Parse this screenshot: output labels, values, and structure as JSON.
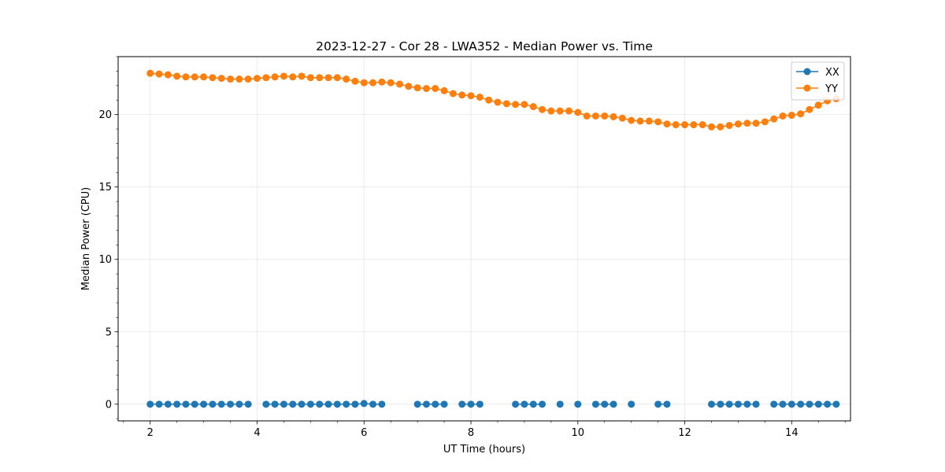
{
  "chart_data": {
    "type": "scatter",
    "title": "2023-12-27 - Cor 28 - LWA352 - Median Power vs. Time",
    "xlabel": "UT Time (hours)",
    "ylabel": "Median Power (CPU)",
    "xlim": [
      1.4,
      15.1
    ],
    "ylim": [
      -1.15,
      24.0
    ],
    "xticks": [
      2,
      4,
      6,
      8,
      10,
      12,
      14
    ],
    "xtick_labels": [
      "2",
      "4",
      "6",
      "8",
      "10",
      "12",
      "14"
    ],
    "yticks": [
      0,
      5,
      10,
      15,
      20
    ],
    "ytick_labels": [
      "0",
      "5",
      "10",
      "15",
      "20"
    ],
    "grid": true,
    "legend_position": "top-right",
    "series": [
      {
        "name": "XX",
        "color": "#1f77b4",
        "x": [
          2.0,
          2.167,
          2.333,
          2.5,
          2.667,
          2.833,
          3.0,
          3.167,
          3.333,
          3.5,
          3.667,
          3.833,
          4.167,
          4.333,
          4.5,
          4.667,
          4.833,
          5.0,
          5.167,
          5.333,
          5.5,
          5.667,
          5.833,
          6.0,
          6.167,
          6.333,
          7.0,
          7.167,
          7.333,
          7.5,
          7.833,
          8.0,
          8.167,
          8.833,
          9.0,
          9.167,
          9.333,
          9.667,
          10.0,
          10.333,
          10.5,
          10.667,
          11.0,
          11.5,
          11.667,
          12.5,
          12.667,
          12.833,
          13.0,
          13.167,
          13.333,
          13.667,
          13.833,
          14.0,
          14.167,
          14.333,
          14.5,
          14.667,
          14.833
        ],
        "y": [
          0.0,
          0.0,
          0.0,
          0.0,
          0.0,
          0.0,
          0.0,
          0.0,
          0.0,
          0.0,
          0.0,
          0.0,
          0.0,
          0.0,
          0.0,
          0.0,
          0.0,
          0.0,
          0.0,
          0.0,
          0.0,
          0.0,
          0.0,
          0.05,
          0.0,
          0.0,
          0.0,
          0.0,
          0.0,
          0.0,
          0.0,
          0.0,
          0.0,
          0.0,
          0.0,
          0.0,
          0.0,
          0.0,
          0.0,
          0.0,
          0.0,
          0.0,
          0.0,
          0.0,
          0.0,
          0.0,
          0.0,
          0.0,
          0.0,
          0.0,
          0.0,
          0.0,
          0.0,
          0.0,
          0.0,
          0.0,
          0.0,
          0.0,
          0.0
        ]
      },
      {
        "name": "YY",
        "color": "#ff7f0e",
        "x": [
          2.0,
          2.167,
          2.333,
          2.5,
          2.667,
          2.833,
          3.0,
          3.167,
          3.333,
          3.5,
          3.667,
          3.833,
          4.0,
          4.167,
          4.333,
          4.5,
          4.667,
          4.833,
          5.0,
          5.167,
          5.333,
          5.5,
          5.667,
          5.833,
          6.0,
          6.167,
          6.333,
          6.5,
          6.667,
          6.833,
          7.0,
          7.167,
          7.333,
          7.5,
          7.667,
          7.833,
          8.0,
          8.167,
          8.333,
          8.5,
          8.667,
          8.833,
          9.0,
          9.167,
          9.333,
          9.5,
          9.667,
          9.833,
          10.0,
          10.167,
          10.333,
          10.5,
          10.667,
          10.833,
          11.0,
          11.167,
          11.333,
          11.5,
          11.667,
          11.833,
          12.0,
          12.167,
          12.333,
          12.5,
          12.667,
          12.833,
          13.0,
          13.167,
          13.333,
          13.5,
          13.667,
          13.833,
          14.0,
          14.167,
          14.333,
          14.5,
          14.667,
          14.833
        ],
        "y": [
          22.85,
          22.8,
          22.75,
          22.65,
          22.6,
          22.6,
          22.6,
          22.55,
          22.5,
          22.45,
          22.45,
          22.45,
          22.5,
          22.55,
          22.6,
          22.65,
          22.6,
          22.65,
          22.55,
          22.55,
          22.55,
          22.55,
          22.45,
          22.3,
          22.2,
          22.2,
          22.25,
          22.2,
          22.1,
          21.95,
          21.85,
          21.8,
          21.8,
          21.65,
          21.45,
          21.35,
          21.3,
          21.2,
          21.0,
          20.85,
          20.75,
          20.7,
          20.7,
          20.55,
          20.35,
          20.25,
          20.25,
          20.25,
          20.15,
          19.9,
          19.9,
          19.9,
          19.85,
          19.75,
          19.6,
          19.55,
          19.55,
          19.5,
          19.35,
          19.3,
          19.3,
          19.3,
          19.3,
          19.15,
          19.15,
          19.25,
          19.35,
          19.4,
          19.4,
          19.5,
          19.7,
          19.9,
          19.95,
          20.05,
          20.35,
          20.65,
          20.95,
          21.1
        ]
      }
    ]
  }
}
